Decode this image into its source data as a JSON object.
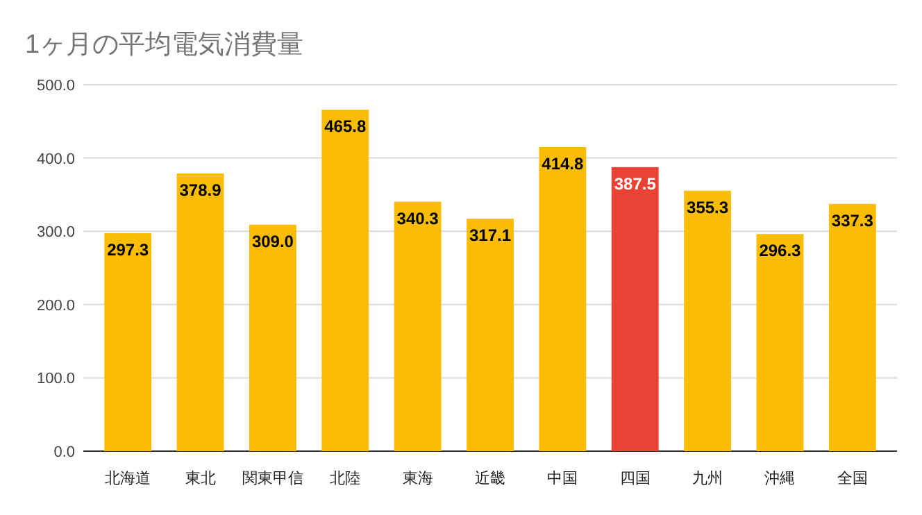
{
  "chart_data": {
    "type": "bar",
    "title": "1ヶ月の平均電気消費量",
    "categories": [
      "北海道",
      "東北",
      "関東甲信",
      "北陸",
      "東海",
      "近畿",
      "中国",
      "四国",
      "九州",
      "沖縄",
      "全国"
    ],
    "values": [
      297.3,
      378.9,
      309.0,
      465.8,
      340.3,
      317.1,
      414.8,
      387.5,
      355.3,
      296.3,
      337.3
    ],
    "value_labels": [
      "297.3",
      "378.9",
      "309.0",
      "465.8",
      "340.3",
      "317.1",
      "414.8",
      "387.5",
      "355.3",
      "296.3",
      "337.3"
    ],
    "colors": [
      "#fbbc04",
      "#fbbc04",
      "#fbbc04",
      "#fbbc04",
      "#fbbc04",
      "#fbbc04",
      "#fbbc04",
      "#ea4335",
      "#fbbc04",
      "#fbbc04",
      "#fbbc04"
    ],
    "ylim": [
      0,
      500
    ],
    "yticks": [
      {
        "value": 0,
        "label": "0.0"
      },
      {
        "value": 100,
        "label": "100.0"
      },
      {
        "value": 200,
        "label": "200.0"
      },
      {
        "value": 300,
        "label": "300.0"
      },
      {
        "value": 400,
        "label": "400.0"
      },
      {
        "value": 500,
        "label": "500.0"
      }
    ],
    "grid": "y"
  }
}
